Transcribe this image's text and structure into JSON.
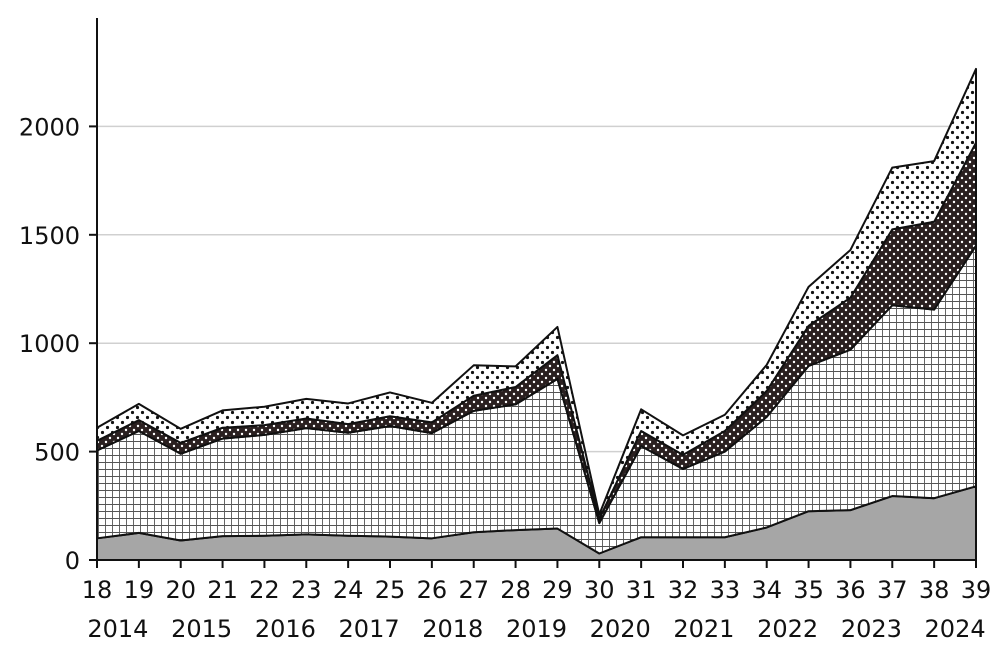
{
  "chart_data": {
    "type": "area",
    "stacked": true,
    "title": "",
    "xlabel": "",
    "ylabel": "",
    "ylim": [
      0,
      2500
    ],
    "yticks": [
      0,
      500,
      1000,
      1500,
      2000
    ],
    "grid": "horizontal",
    "legend": "none",
    "categories": [
      "18",
      "19",
      "20",
      "21",
      "22",
      "23",
      "24",
      "25",
      "26",
      "27",
      "28",
      "29",
      "30",
      "31",
      "32",
      "33",
      "34",
      "35",
      "36",
      "37",
      "38",
      "39"
    ],
    "year_labels": [
      "2014",
      "2015",
      "2016",
      "2017",
      "2018",
      "2019",
      "2020",
      "2021",
      "2022",
      "2023",
      "2024"
    ],
    "series": [
      {
        "fill": "gray-solid",
        "color": "#a6a6a6",
        "values": [
          100,
          125,
          90,
          110,
          112,
          118,
          112,
          108,
          100,
          128,
          138,
          145,
          30,
          105,
          105,
          105,
          150,
          225,
          230,
          295,
          285,
          340
        ]
      },
      {
        "fill": "grid-hatch",
        "color": "#ffffff",
        "values": [
          405,
          470,
          400,
          450,
          465,
          490,
          475,
          510,
          485,
          560,
          580,
          690,
          140,
          420,
          315,
          395,
          510,
          670,
          740,
          880,
          870,
          1110
        ]
      },
      {
        "fill": "dark-dotted",
        "color": "#2a2020",
        "values": [
          45,
          50,
          50,
          50,
          45,
          45,
          40,
          45,
          50,
          70,
          80,
          110,
          20,
          70,
          65,
          95,
          120,
          185,
          240,
          350,
          405,
          475
        ]
      },
      {
        "fill": "light-dotted",
        "color": "#ffffff",
        "values": [
          60,
          75,
          65,
          80,
          85,
          90,
          95,
          110,
          90,
          140,
          95,
          130,
          20,
          100,
          90,
          75,
          120,
          180,
          220,
          285,
          280,
          340
        ]
      }
    ]
  }
}
